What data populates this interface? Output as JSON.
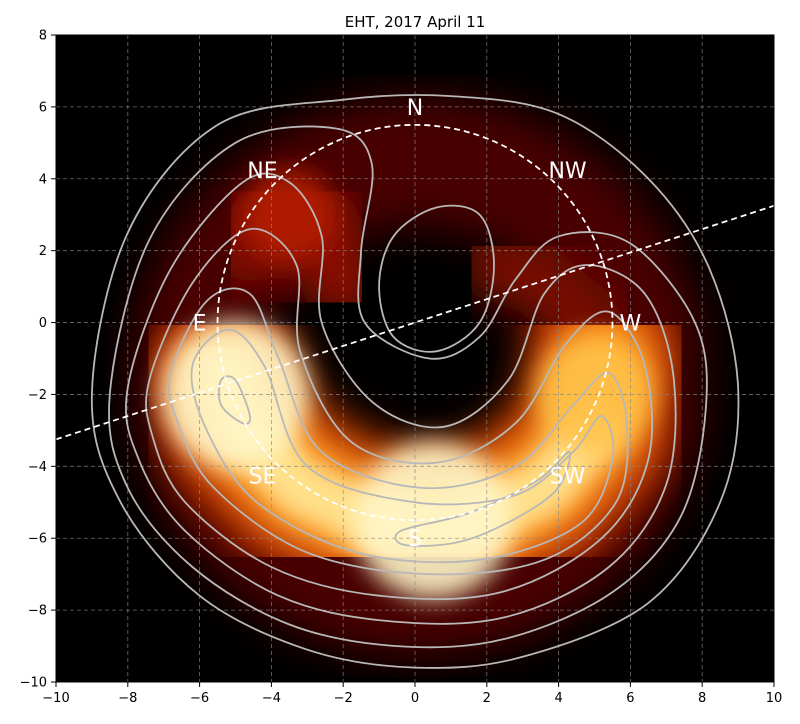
{
  "chart_data": {
    "type": "heatmap",
    "title": "EHT, 2017 April 11",
    "xlabel": "",
    "ylabel": "",
    "xlim": [
      -10,
      10
    ],
    "ylim": [
      -10,
      8
    ],
    "grid": true,
    "xticks": [
      -10,
      -8,
      -6,
      -4,
      -2,
      0,
      2,
      4,
      6,
      8,
      10
    ],
    "yticks": [
      -10,
      -8,
      -6,
      -4,
      -2,
      0,
      2,
      4,
      6,
      8
    ],
    "xtick_labels": [
      "−10",
      "−8",
      "−6",
      "−4",
      "−2",
      "0",
      "2",
      "4",
      "6",
      "8",
      "10"
    ],
    "ytick_labels": [
      "−10",
      "−8",
      "−6",
      "−4",
      "−2",
      "0",
      "2",
      "4",
      "6",
      "8"
    ],
    "colormap": "afmhot",
    "ring_circle": {
      "center": [
        0,
        0
      ],
      "radius": 5.5
    },
    "reference_line": {
      "from": [
        -10,
        -3.25
      ],
      "to": [
        10,
        3.25
      ]
    },
    "direction_labels": [
      {
        "text": "N",
        "x": 0,
        "y": 6
      },
      {
        "text": "NE",
        "x": -4.25,
        "y": 4.25
      },
      {
        "text": "E",
        "x": -6,
        "y": 0
      },
      {
        "text": "SE",
        "x": -4.25,
        "y": -4.25
      },
      {
        "text": "S",
        "x": 0,
        "y": -6
      },
      {
        "text": "SW",
        "x": 4.25,
        "y": -4.25
      },
      {
        "text": "W",
        "x": 6,
        "y": 0
      },
      {
        "text": "NW",
        "x": 4.25,
        "y": 4.25
      }
    ],
    "brightness_peaks": [
      {
        "x": 0.5,
        "y": -5.5,
        "level": 1.0
      },
      {
        "x": -5.0,
        "y": -2.0,
        "level": 0.9
      },
      {
        "x": 5.0,
        "y": -2.0,
        "level": 0.6
      },
      {
        "x": -3.5,
        "y": 3.0,
        "level": 0.35
      }
    ],
    "contour_color": "#b8b8b8"
  }
}
